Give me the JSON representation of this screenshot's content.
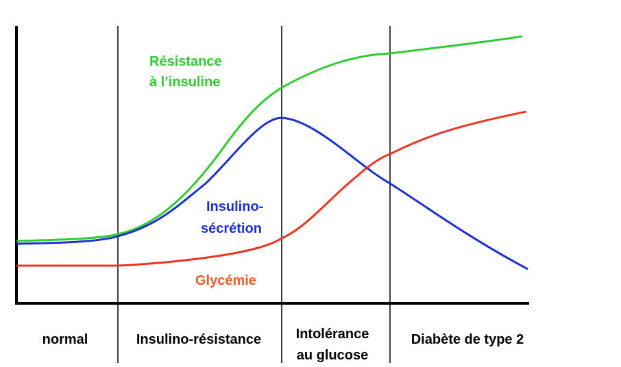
{
  "curve_labels": {
    "insulin_resistance": [
      "Résistance",
      "à l’insuline"
    ],
    "insulin_secretion": [
      "Insulino-",
      "sécrétion"
    ],
    "glycemia": [
      "Glycémie"
    ]
  },
  "phases": [
    [
      "normal"
    ],
    [
      "Insulino-résistance"
    ],
    [
      "Intolérance",
      "au glucose"
    ],
    [
      "Diabète de type 2"
    ]
  ]
}
